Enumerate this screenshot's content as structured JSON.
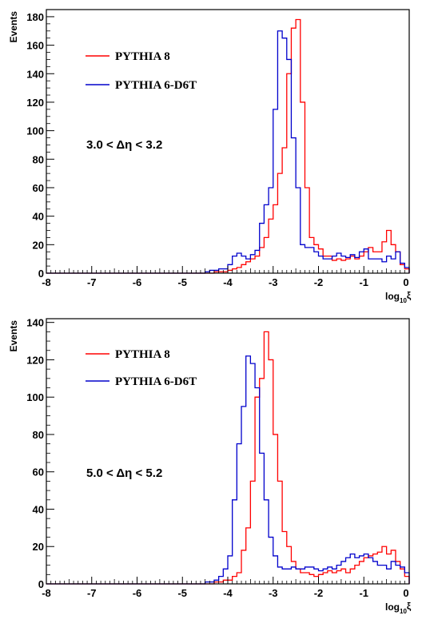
{
  "colors": {
    "pythia8": "#ff0000",
    "pythia6": "#0000cc",
    "axis": "#000000"
  },
  "chart_data": [
    {
      "type": "histogram",
      "title": "",
      "xlabel_main": "log",
      "xlabel_sub": "10",
      "xlabel_tail": "ξ",
      "ylabel": "Events",
      "xlim": [
        -8,
        0
      ],
      "ylim": [
        0,
        185
      ],
      "xticks": [
        "-8",
        "-7",
        "-6",
        "-5",
        "-4",
        "-3",
        "-2",
        "-1",
        "0"
      ],
      "yticks": [
        "0",
        "20",
        "40",
        "60",
        "80",
        "100",
        "120",
        "140",
        "160",
        "180"
      ],
      "region_label": "3.0 < Δη < 3.2",
      "legend": [
        "PYTHIA 8",
        "PYTHIA 6-D6T"
      ],
      "bin_edges": [
        -4.5,
        -4.4,
        -4.3,
        -4.2,
        -4.1,
        -4.0,
        -3.9,
        -3.8,
        -3.7,
        -3.6,
        -3.5,
        -3.4,
        -3.3,
        -3.2,
        -3.1,
        -3.0,
        -2.9,
        -2.8,
        -2.7,
        -2.6,
        -2.5,
        -2.4,
        -2.3,
        -2.2,
        -2.1,
        -2.0,
        -1.9,
        -1.8,
        -1.7,
        -1.6,
        -1.5,
        -1.4,
        -1.3,
        -1.2,
        -1.1,
        -1.0,
        -0.9,
        -0.8,
        -0.7,
        -0.6,
        -0.5,
        -0.4,
        -0.3,
        -0.2,
        -0.1,
        0.0
      ],
      "series": [
        {
          "name": "PYTHIA 8",
          "color_key": "pythia8",
          "values": [
            0,
            0,
            1,
            1,
            1,
            2,
            3,
            4,
            6,
            8,
            10,
            12,
            18,
            25,
            38,
            48,
            70,
            88,
            140,
            172,
            178,
            120,
            60,
            25,
            20,
            17,
            12,
            12,
            9,
            10,
            9,
            10,
            12,
            10,
            12,
            15,
            18,
            15,
            15,
            22,
            30,
            20,
            15,
            6,
            3
          ]
        },
        {
          "name": "PYTHIA 6-D6T",
          "color_key": "pythia6",
          "values": [
            1,
            2,
            2,
            3,
            3,
            6,
            12,
            14,
            12,
            10,
            13,
            16,
            35,
            48,
            60,
            115,
            170,
            165,
            150,
            95,
            60,
            20,
            18,
            18,
            15,
            12,
            10,
            10,
            12,
            14,
            12,
            11,
            13,
            11,
            15,
            17,
            10,
            10,
            10,
            8,
            12,
            10,
            15,
            7,
            4
          ]
        }
      ]
    },
    {
      "type": "histogram",
      "title": "",
      "xlabel_main": "log",
      "xlabel_sub": "10",
      "xlabel_tail": "ξ",
      "ylabel": "Events",
      "xlim": [
        -8,
        0
      ],
      "ylim": [
        0,
        142
      ],
      "xticks": [
        "-8",
        "-7",
        "-6",
        "-5",
        "-4",
        "-3",
        "-2",
        "-1",
        "0"
      ],
      "yticks": [
        "0",
        "20",
        "40",
        "60",
        "80",
        "100",
        "120",
        "140"
      ],
      "region_label": "5.0 < Δη < 5.2",
      "legend": [
        "PYTHIA 8",
        "PYTHIA 6-D6T"
      ],
      "bin_edges": [
        -4.5,
        -4.4,
        -4.3,
        -4.2,
        -4.1,
        -4.0,
        -3.9,
        -3.8,
        -3.7,
        -3.6,
        -3.5,
        -3.4,
        -3.3,
        -3.2,
        -3.1,
        -3.0,
        -2.9,
        -2.8,
        -2.7,
        -2.6,
        -2.5,
        -2.4,
        -2.3,
        -2.2,
        -2.1,
        -2.0,
        -1.9,
        -1.8,
        -1.7,
        -1.6,
        -1.5,
        -1.4,
        -1.3,
        -1.2,
        -1.1,
        -1.0,
        -0.9,
        -0.8,
        -0.7,
        -0.6,
        -0.5,
        -0.4,
        -0.3,
        -0.2,
        -0.1,
        0.0
      ],
      "series": [
        {
          "name": "PYTHIA 8",
          "color_key": "pythia8",
          "values": [
            0,
            0,
            1,
            1,
            2,
            2,
            4,
            6,
            18,
            30,
            55,
            100,
            110,
            135,
            120,
            80,
            55,
            28,
            20,
            12,
            8,
            6,
            6,
            5,
            4,
            5,
            6,
            7,
            6,
            7,
            8,
            6,
            8,
            10,
            12,
            14,
            15,
            16,
            17,
            20,
            16,
            18,
            12,
            8,
            4
          ]
        },
        {
          "name": "PYTHIA 6-D6T",
          "color_key": "pythia6",
          "values": [
            1,
            1,
            2,
            4,
            8,
            15,
            45,
            75,
            95,
            122,
            118,
            105,
            70,
            45,
            25,
            15,
            9,
            8,
            8,
            9,
            8,
            8,
            9,
            9,
            8,
            7,
            8,
            9,
            8,
            10,
            12,
            14,
            16,
            14,
            15,
            16,
            14,
            12,
            10,
            10,
            8,
            12,
            10,
            9,
            6
          ]
        }
      ]
    }
  ]
}
